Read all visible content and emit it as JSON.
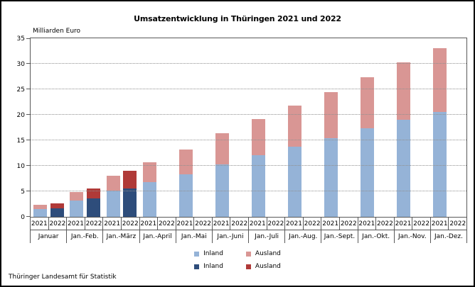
{
  "title": "Umsatzentwicklung in Thüringen 2021 und 2022",
  "footer": "Thüringer Landesamt für Statistik",
  "chart_data": {
    "type": "bar",
    "stacked": true,
    "unit_label": "Milliarden Euro",
    "ylim": [
      0,
      35
    ],
    "yticks": [
      0,
      5,
      10,
      15,
      20,
      25,
      30,
      35
    ],
    "grid": "horizontal-dotted",
    "legend_position": "bottom",
    "categories": [
      "Januar",
      "Jan.-Feb.",
      "Jan.-März",
      "Jan.-April",
      "Jan.-Mai",
      "Jan.-Juni",
      "Jan.-Juli",
      "Jan.-Aug.",
      "Jan.-Sept.",
      "Jan.-Okt.",
      "Jan.-Nov.",
      "Jan.-Dez."
    ],
    "year_labels": [
      "2021",
      "2022"
    ],
    "series": [
      {
        "name": "Inland",
        "year": "2021",
        "color": "#95B3D7",
        "values": [
          1.5,
          3.2,
          5.1,
          6.8,
          8.4,
          10.3,
          12.1,
          13.7,
          15.4,
          17.3,
          19.0,
          20.6
        ]
      },
      {
        "name": "Ausland",
        "year": "2021",
        "color": "#D99694",
        "values": [
          0.9,
          1.6,
          3.0,
          3.9,
          4.8,
          6.1,
          7.1,
          8.1,
          9.1,
          10.1,
          11.3,
          12.4
        ]
      },
      {
        "name": "Inland",
        "year": "2022",
        "color": "#2E4D7B",
        "values": [
          1.7,
          3.6,
          5.6,
          null,
          null,
          null,
          null,
          null,
          null,
          null,
          null,
          null
        ]
      },
      {
        "name": "Ausland",
        "year": "2022",
        "color": "#B03A38",
        "values": [
          1.0,
          2.0,
          3.4,
          null,
          null,
          null,
          null,
          null,
          null,
          null,
          null,
          null
        ]
      }
    ]
  },
  "legend": {
    "rows": [
      [
        {
          "label": "Inland",
          "color": "#95B3D7"
        },
        {
          "label": "Ausland",
          "color": "#D99694"
        }
      ],
      [
        {
          "label": "Inland",
          "color": "#2E4D7B"
        },
        {
          "label": "Ausland",
          "color": "#B03A38"
        }
      ]
    ]
  }
}
